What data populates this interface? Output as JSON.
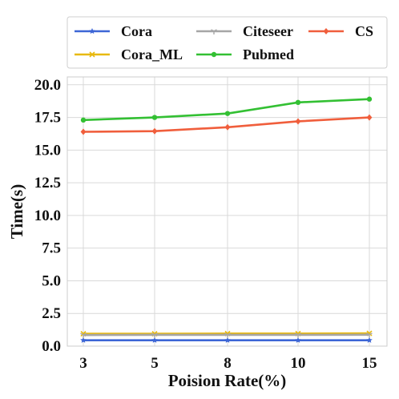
{
  "chart_data": {
    "type": "line",
    "x": [
      3,
      5,
      8,
      10,
      15
    ],
    "x_tick_labels": [
      "3",
      "5",
      "8",
      "10",
      "15"
    ],
    "xlabel": "Poision Rate(%)",
    "ylabel": "Time(s)",
    "ylim": [
      0,
      20.6
    ],
    "y_ticks": [
      0,
      2.5,
      5,
      7.5,
      10,
      12.5,
      15,
      17.5,
      20
    ],
    "y_tick_labels": [
      "0.0",
      "2.5",
      "5.0",
      "7.5",
      "10.0",
      "12.5",
      "15.0",
      "17.5",
      "20.0"
    ],
    "grid": true,
    "legend_position": "top",
    "series": [
      {
        "name": "Cora",
        "color": "#3d66d6",
        "marker": "star",
        "values": [
          0.45,
          0.45,
          0.45,
          0.45,
          0.45
        ]
      },
      {
        "name": "Cora_ML",
        "color": "#e8b90f",
        "marker": "x",
        "values": [
          0.95,
          0.95,
          0.96,
          0.96,
          0.98
        ]
      },
      {
        "name": "Citeseer",
        "color": "#a6a6a6",
        "marker": "tri",
        "values": [
          0.85,
          0.86,
          0.86,
          0.86,
          0.87
        ]
      },
      {
        "name": "Pubmed",
        "color": "#33c033",
        "marker": "circle",
        "values": [
          17.3,
          17.5,
          17.8,
          18.65,
          18.9
        ]
      },
      {
        "name": "CS",
        "color": "#f05e3c",
        "marker": "diamond",
        "values": [
          16.4,
          16.45,
          16.75,
          17.2,
          17.5
        ]
      }
    ]
  }
}
